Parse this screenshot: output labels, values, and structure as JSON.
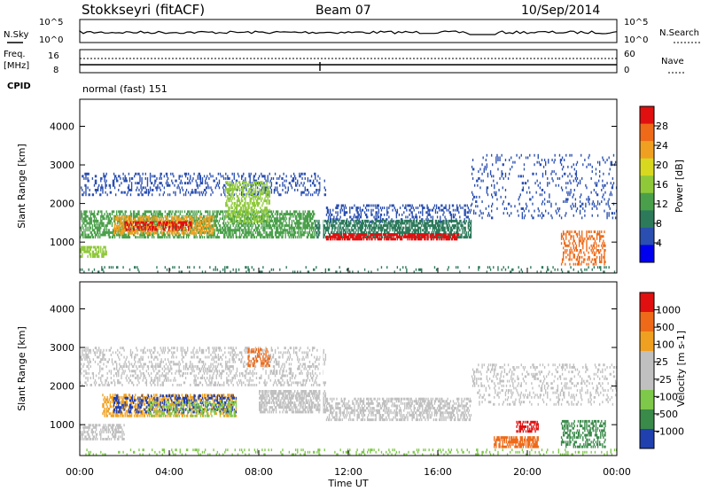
{
  "header": {
    "station": "Stokkseyri (fitACF)",
    "beam": "Beam 07",
    "date": "10/Sep/2014"
  },
  "status_panels": {
    "nsky_label": "N.Sky",
    "nsearch_label": "N.Search",
    "noise_ticks": [
      "10^5",
      "10^0"
    ],
    "freq_label": "Freq.",
    "freq_unit": "[MHz]",
    "freq_ticks": [
      "16",
      "8"
    ],
    "nave_label": "Nave",
    "nave_ticks": [
      "60",
      "0"
    ],
    "cpid_label": "CPID",
    "cpid_value": "normal (fast) 151"
  },
  "chart_data": [
    {
      "type": "heatmap",
      "name": "power",
      "ylabel": "Slant Range [km]",
      "yticks": [
        "1000",
        "2000",
        "3000",
        "4000"
      ],
      "ylim": [
        200,
        4700
      ],
      "xlim": [
        0,
        24
      ],
      "colorbar_label": "Power [dB]",
      "colorbar_ticks": [
        "28",
        "24",
        "20",
        "16",
        "12",
        "8",
        "4"
      ],
      "colorscale": [
        "#0000ee",
        "#2a4fb0",
        "#2c7a5a",
        "#4aa04a",
        "#8fc93a",
        "#d8d820",
        "#f0a020",
        "#ee6a18",
        "#e01010"
      ],
      "layers": [
        {
          "desc_color": "#2a4fb0",
          "bands": [
            [
              0,
              11,
              2300,
              2700
            ],
            [
              11,
              17,
              1600,
              1900
            ],
            [
              18,
              24,
              1800,
              3200
            ]
          ]
        },
        {
          "desc_color": "#4aa04a",
          "bands": [
            [
              0,
              10.5,
              1100,
              1700
            ],
            [
              10.5,
              17.5,
              1100,
              1500
            ]
          ]
        },
        {
          "desc_color": "#e01010",
          "bands": [
            [
              2,
              6,
              1300,
              1600
            ],
            [
              11,
              17,
              1050,
              1200
            ]
          ]
        }
      ]
    },
    {
      "type": "heatmap",
      "name": "velocity",
      "ylabel": "Slant Range [km]",
      "yticks": [
        "1000",
        "2000",
        "3000",
        "4000"
      ],
      "ylim": [
        200,
        4700
      ],
      "xlim": [
        0,
        24
      ],
      "colorbar_label": "Velocity [m s-1]",
      "colorbar_ticks": [
        "1000",
        "500",
        "100",
        "25",
        "-25",
        "-100",
        "-500",
        "-1000"
      ],
      "colorscale": [
        "#2040b0",
        "#3a8a4a",
        "#7ec84a",
        "#c0c0c0",
        "#c0c0c0",
        "#f0a020",
        "#ee6a18",
        "#e01010"
      ],
      "xlabel": "Time UT",
      "xticks": [
        "00:00",
        "04:00",
        "08:00",
        "12:00",
        "16:00",
        "20:00",
        "00:00"
      ]
    }
  ]
}
